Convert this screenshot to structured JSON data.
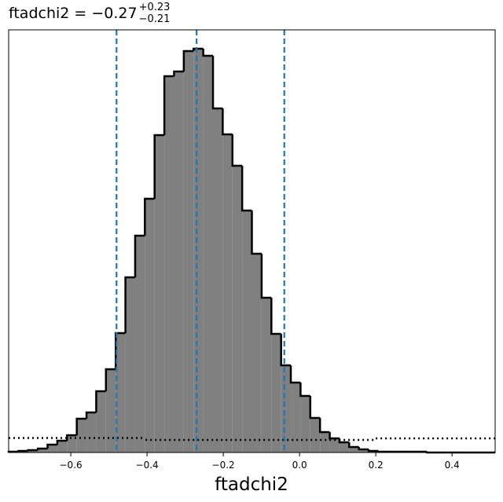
{
  "chart_data": {
    "type": "histogram",
    "title": "ftadchi2 = −0.27",
    "title_superscript": "+0.23",
    "title_subscript": "−0.21",
    "x_label": "ftadchi2",
    "bins": [
      -0.763,
      -0.7374,
      -0.7119,
      -0.6864,
      -0.6609,
      -0.6354,
      -0.6098,
      -0.5843,
      -0.5588,
      -0.5333,
      -0.5078,
      -0.4822,
      -0.4567,
      -0.4312,
      -0.4057,
      -0.3802,
      -0.3546,
      -0.3291,
      -0.3036,
      -0.2781,
      -0.2526,
      -0.227,
      -0.2015,
      -0.176,
      -0.1505,
      -0.125,
      -0.0994,
      -0.0739,
      -0.0484,
      -0.0229,
      0.0026,
      0.0282,
      0.0537,
      0.0792,
      0.1047,
      0.1302,
      0.1558,
      0.1813,
      0.2068,
      0.2323,
      0.2578,
      0.2834,
      0.3089,
      0.3344,
      0.3599,
      0.3854,
      0.411,
      0.4365,
      0.462,
      0.4875,
      0.513
    ],
    "counts": [
      1,
      2,
      3,
      5,
      10,
      15,
      22,
      43,
      51,
      78,
      106,
      152,
      223,
      276,
      323,
      404,
      479,
      485,
      511,
      514,
      505,
      438,
      405,
      365,
      308,
      253,
      197,
      151,
      111,
      89,
      72,
      44,
      26,
      18,
      13,
      7,
      4,
      2,
      1,
      1,
      1,
      1,
      1,
      0,
      0,
      0,
      0,
      0,
      0,
      0
    ],
    "color": "#808080",
    "edge_color": "#000000",
    "prior": {
      "bins": [
        -0.763,
        -0.404,
        0.2,
        0.513
      ],
      "values": [
        18.5,
        16,
        18
      ],
      "color": "#000000"
    },
    "vlines": [
      -0.48,
      -0.27,
      -0.04
    ],
    "vline_color": "#1f77b4",
    "xlim": [
      -0.763,
      0.513
    ],
    "ylim": [
      0,
      538
    ],
    "xticks": [
      {
        "value": -0.6,
        "label": "−0.6"
      },
      {
        "value": -0.4,
        "label": "−0.4"
      },
      {
        "value": -0.2,
        "label": "−0.2"
      },
      {
        "value": 0,
        "label": "0.0"
      },
      0.2,
      0.4
    ]
  }
}
